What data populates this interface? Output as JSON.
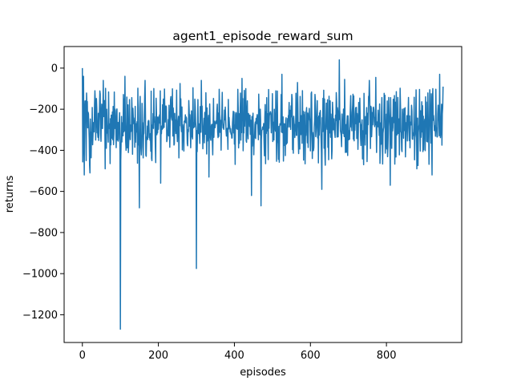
{
  "chart_data": {
    "type": "line",
    "title": "agent1_episode_reward_sum",
    "xlabel": "episodes",
    "ylabel": "returns",
    "xlim": [
      -48,
      998
    ],
    "ylim": [
      -1335,
      105
    ],
    "xticks": [
      0,
      200,
      400,
      600,
      800
    ],
    "yticks": [
      0,
      -200,
      -400,
      -600,
      -800,
      -1000,
      -1200
    ],
    "grid": false,
    "legend": "none",
    "series": [
      {
        "color": "#1f77b4",
        "x_range": [
          0,
          949
        ],
        "points_total": 950,
        "seed": 1234,
        "baseline": -275,
        "spread": 75,
        "spikes": [
          {
            "x": 0,
            "y": 0
          },
          {
            "x": 3,
            "y": -40
          },
          {
            "x": 5,
            "y": -520
          },
          {
            "x": 12,
            "y": -180
          },
          {
            "x": 20,
            "y": -510
          },
          {
            "x": 33,
            "y": -110
          },
          {
            "x": 55,
            "y": -60
          },
          {
            "x": 60,
            "y": -490
          },
          {
            "x": 100,
            "y": -1270
          },
          {
            "x": 112,
            "y": -40
          },
          {
            "x": 150,
            "y": -680
          },
          {
            "x": 165,
            "y": -60
          },
          {
            "x": 206,
            "y": -560
          },
          {
            "x": 257,
            "y": -75
          },
          {
            "x": 300,
            "y": -975
          },
          {
            "x": 313,
            "y": -60
          },
          {
            "x": 333,
            "y": -530
          },
          {
            "x": 420,
            "y": -50
          },
          {
            "x": 445,
            "y": -620
          },
          {
            "x": 470,
            "y": -670
          },
          {
            "x": 525,
            "y": -30
          },
          {
            "x": 566,
            "y": -70
          },
          {
            "x": 605,
            "y": -440
          },
          {
            "x": 630,
            "y": -590
          },
          {
            "x": 676,
            "y": 40
          },
          {
            "x": 690,
            "y": -55
          },
          {
            "x": 740,
            "y": -470
          },
          {
            "x": 755,
            "y": -60
          },
          {
            "x": 772,
            "y": -45
          },
          {
            "x": 810,
            "y": -570
          },
          {
            "x": 880,
            "y": -490
          },
          {
            "x": 920,
            "y": -520
          },
          {
            "x": 940,
            "y": -30
          },
          {
            "x": 949,
            "y": -90
          }
        ]
      }
    ]
  }
}
